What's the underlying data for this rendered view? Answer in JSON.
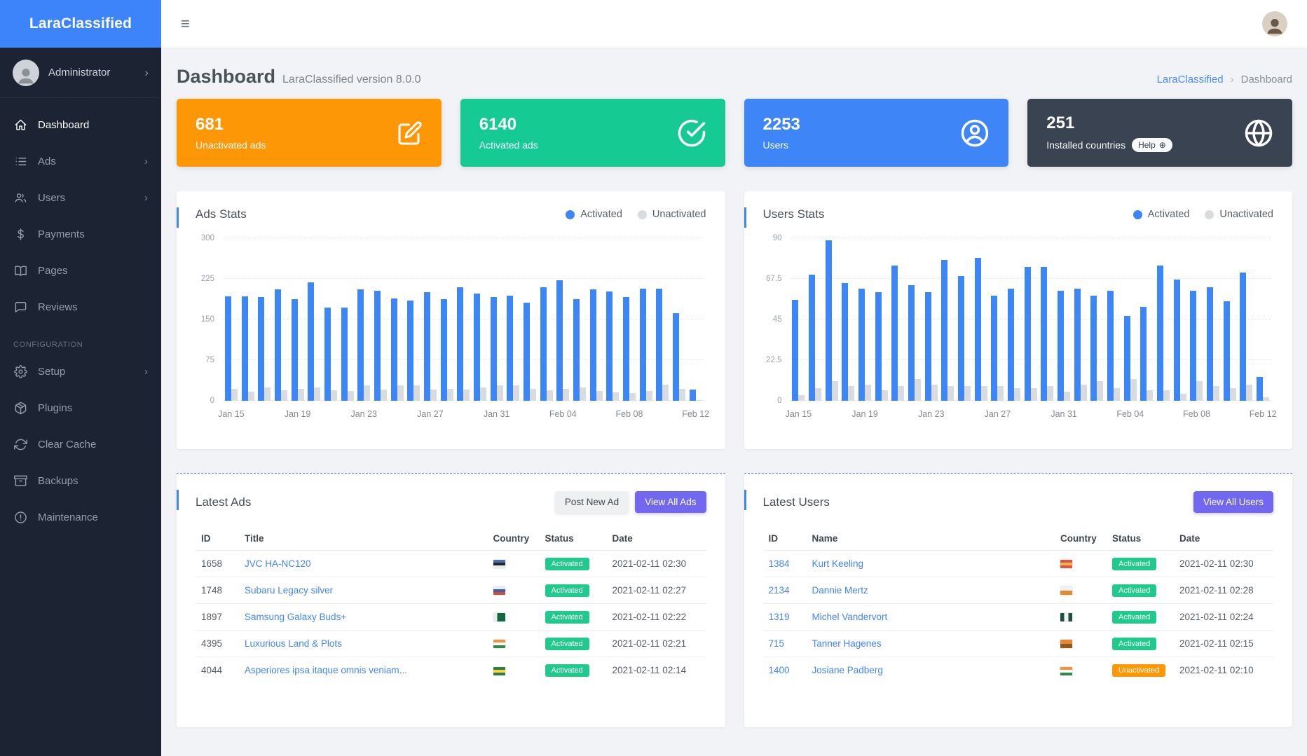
{
  "app": {
    "name": "LaraClassified"
  },
  "icons": {
    "hamburger": "≡",
    "chevron": "›",
    "breadcrumb_separator": "›",
    "help_globe": "⊕"
  },
  "sidebar": {
    "user": {
      "name": "Administrator"
    },
    "items": [
      {
        "label": "Dashboard",
        "icon": "home",
        "active": true
      },
      {
        "label": "Ads",
        "icon": "list",
        "chevron": true
      },
      {
        "label": "Users",
        "icon": "users",
        "chevron": true
      },
      {
        "label": "Payments",
        "icon": "dollar"
      },
      {
        "label": "Pages",
        "icon": "book"
      },
      {
        "label": "Reviews",
        "icon": "chat"
      },
      {
        "section": "CONFIGURATION"
      },
      {
        "label": "Setup",
        "icon": "gear",
        "chevron": true
      },
      {
        "label": "Plugins",
        "icon": "box"
      },
      {
        "label": "Clear Cache",
        "icon": "refresh"
      },
      {
        "label": "Backups",
        "icon": "archive"
      },
      {
        "label": "Maintenance",
        "icon": "alert"
      }
    ]
  },
  "header": {
    "title": "Dashboard",
    "subtitle": "LaraClassified version 8.0.0",
    "breadcrumb": {
      "link": "LaraClassified",
      "current": "Dashboard"
    }
  },
  "stat_cards": [
    {
      "value": "681",
      "label": "Unactivated ads",
      "color": "#fe9705",
      "icon": "edit"
    },
    {
      "value": "6140",
      "label": "Activated ads",
      "color": "#15ca93",
      "icon": "check-circle"
    },
    {
      "value": "2253",
      "label": "Users",
      "color": "#3e86f8",
      "icon": "user-circle"
    },
    {
      "value": "251",
      "label": "Installed countries",
      "color": "#3a4351",
      "icon": "globe",
      "badge": "Help"
    }
  ],
  "chart_data": [
    {
      "type": "bar",
      "title": "Ads Stats",
      "categories": [
        "Jan 15",
        "Jan 16",
        "Jan 17",
        "Jan 18",
        "Jan 19",
        "Jan 20",
        "Jan 21",
        "Jan 22",
        "Jan 23",
        "Jan 24",
        "Jan 25",
        "Jan 26",
        "Jan 27",
        "Jan 28",
        "Jan 29",
        "Jan 30",
        "Jan 31",
        "Feb 01",
        "Feb 02",
        "Feb 03",
        "Feb 04",
        "Feb 05",
        "Feb 06",
        "Feb 07",
        "Feb 08",
        "Feb 09",
        "Feb 10",
        "Feb 11",
        "Feb 12"
      ],
      "series": [
        {
          "name": "Activated",
          "color": "#3d86f8",
          "values": [
            193,
            193,
            191,
            205,
            188,
            218,
            172,
            172,
            205,
            203,
            189,
            185,
            200,
            187,
            210,
            198,
            192,
            194,
            181,
            209,
            222,
            187,
            205,
            202,
            192,
            207,
            207,
            162,
            21
          ]
        },
        {
          "name": "Unactivated",
          "color": "#d9dcdf",
          "values": [
            22,
            17,
            24,
            19,
            22,
            24,
            19,
            18,
            29,
            21,
            28,
            28,
            21,
            22,
            21,
            24,
            28,
            29,
            22,
            19,
            22,
            25,
            18,
            15,
            14,
            18,
            30,
            22,
            1
          ]
        }
      ],
      "yticks": [
        0,
        75,
        150,
        225,
        300
      ],
      "ylim": [
        0,
        300
      ],
      "x_tick_labels": [
        "Jan 15",
        "Jan 19",
        "Jan 23",
        "Jan 27",
        "Jan 31",
        "Feb 04",
        "Feb 08",
        "Feb 12"
      ],
      "grid": "horizontal-dotted",
      "legend_position": "top-right"
    },
    {
      "type": "bar",
      "title": "Users Stats",
      "categories": [
        "Jan 15",
        "Jan 16",
        "Jan 17",
        "Jan 18",
        "Jan 19",
        "Jan 20",
        "Jan 21",
        "Jan 22",
        "Jan 23",
        "Jan 24",
        "Jan 25",
        "Jan 26",
        "Jan 27",
        "Jan 28",
        "Jan 29",
        "Jan 30",
        "Jan 31",
        "Feb 01",
        "Feb 02",
        "Feb 03",
        "Feb 04",
        "Feb 05",
        "Feb 06",
        "Feb 07",
        "Feb 08",
        "Feb 09",
        "Feb 10",
        "Feb 11",
        "Feb 12"
      ],
      "series": [
        {
          "name": "Activated",
          "color": "#3d86f8",
          "values": [
            56,
            70,
            89,
            65,
            62,
            60,
            75,
            64,
            60,
            78,
            69,
            79,
            58,
            62,
            74,
            74,
            61,
            62,
            58,
            61,
            47,
            52,
            75,
            67,
            61,
            63,
            55,
            71,
            13
          ]
        },
        {
          "name": "Unactivated",
          "color": "#d9dcdf",
          "values": [
            3,
            7,
            11,
            8,
            9,
            6,
            8,
            12,
            9,
            8,
            8,
            8,
            8,
            7,
            7,
            8,
            5,
            9,
            11,
            7,
            12,
            6,
            6,
            4,
            11,
            8,
            7,
            9,
            2
          ]
        }
      ],
      "yticks": [
        0,
        22.5,
        45,
        67.5,
        90
      ],
      "ylim": [
        0,
        90
      ],
      "x_tick_labels": [
        "Jan 15",
        "Jan 19",
        "Jan 23",
        "Jan 27",
        "Jan 31",
        "Feb 04",
        "Feb 08",
        "Feb 12"
      ],
      "grid": "horizontal-dotted",
      "legend_position": "top-right"
    }
  ],
  "latest_ads": {
    "title": "Latest Ads",
    "post_button": "Post New Ad",
    "view_button": "View All Ads",
    "columns": [
      "ID",
      "Title",
      "Country",
      "Status",
      "Date"
    ],
    "rows": [
      {
        "id": "1658",
        "title": "JVC HA-NC120",
        "flag": {
          "dir": "h",
          "colors": [
            "#4a6fb5",
            "#23272b",
            "#e9edf0"
          ]
        },
        "status": "Activated",
        "date": "2021-02-11 02:30"
      },
      {
        "id": "1748",
        "title": "Subaru Legacy silver",
        "flag": {
          "dir": "h",
          "colors": [
            "#e9edf0",
            "#3f5fa8",
            "#d54a3d"
          ]
        },
        "status": "Activated",
        "date": "2021-02-11 02:27"
      },
      {
        "id": "1897",
        "title": "Samsung Galaxy Buds+",
        "flag": {
          "dir": "v",
          "colors": [
            "#e9edf0",
            "#0f6a3c",
            "#0f6a3c"
          ]
        },
        "status": "Activated",
        "date": "2021-02-11 02:22"
      },
      {
        "id": "4395",
        "title": "Luxurious Land & Plots",
        "flag": {
          "dir": "h",
          "colors": [
            "#f5923e",
            "#ffffff",
            "#2e8b46"
          ]
        },
        "status": "Activated",
        "date": "2021-02-11 02:21"
      },
      {
        "id": "4044",
        "title": "Asperiores ipsa itaque omnis veniam...",
        "flag": {
          "dir": "h",
          "colors": [
            "#2f7d4f",
            "#ffd43b",
            "#2f7d4f"
          ]
        },
        "status": "Activated",
        "date": "2021-02-11 02:14"
      }
    ]
  },
  "latest_users": {
    "title": "Latest Users",
    "view_button": "View All Users",
    "columns": [
      "ID",
      "Name",
      "Country",
      "Status",
      "Date"
    ],
    "rows": [
      {
        "id": "1384",
        "name": "Kurt Keeling",
        "flag": {
          "dir": "h",
          "colors": [
            "#d9534f",
            "#f3b33c",
            "#d9534f"
          ]
        },
        "status": "Activated",
        "date": "2021-02-11 02:30"
      },
      {
        "id": "2134",
        "name": "Dannie Mertz",
        "flag": {
          "dir": "h",
          "colors": [
            "#f2f2f2",
            "#e8872e"
          ]
        },
        "status": "Activated",
        "date": "2021-02-11 02:28"
      },
      {
        "id": "1319",
        "name": "Michel Vandervort",
        "flag": {
          "dir": "v",
          "colors": [
            "#20503c",
            "#f2f2f2",
            "#20503c"
          ]
        },
        "status": "Activated",
        "date": "2021-02-11 02:24"
      },
      {
        "id": "715",
        "name": "Tanner Hagenes",
        "flag": {
          "dir": "h",
          "colors": [
            "#e8872e",
            "#8a5a1f"
          ]
        },
        "status": "Activated",
        "date": "2021-02-11 02:15"
      },
      {
        "id": "1400",
        "name": "Josiane Padberg",
        "flag": {
          "dir": "h",
          "colors": [
            "#f5923e",
            "#ffffff",
            "#2e8b46"
          ]
        },
        "status": "Unactivated",
        "date": "2021-02-11 02:10"
      }
    ]
  },
  "colors": {
    "accent_blue": "#3d86f8",
    "bar_gray": "#d9dcdf",
    "badge_green": "#20ca8c",
    "badge_orange": "#fd9801",
    "button_purple": "#7267ef",
    "link_blue": "#4285f4",
    "sidebar_bg": "#1c2433",
    "logo_bg": "#3d83fa"
  }
}
